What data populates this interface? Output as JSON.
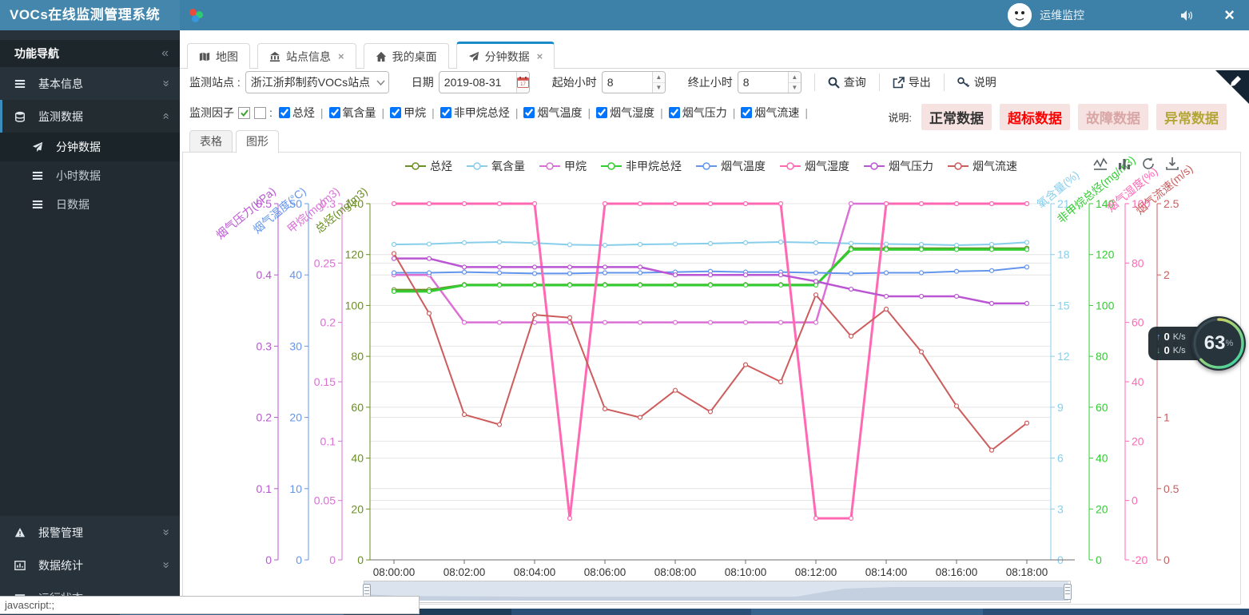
{
  "header": {
    "title": "VOCs在线监测管理系统",
    "user_name": "运维监控"
  },
  "sidebar": {
    "title": "功能导航",
    "items": [
      {
        "label": "基本信息",
        "icon": "list-icon",
        "chevron": "down"
      },
      {
        "label": "监测数据",
        "icon": "database-icon",
        "chevron": "up",
        "active": true
      }
    ],
    "submenu": [
      {
        "label": "分钟数据",
        "icon": "plane-icon",
        "active": true
      },
      {
        "label": "小时数据",
        "icon": "list-icon"
      },
      {
        "label": "日数据",
        "icon": "list-icon"
      }
    ],
    "bottom_items": [
      {
        "label": "报警管理",
        "icon": "alert-icon",
        "chevron": "down"
      },
      {
        "label": "数据统计",
        "icon": "stats-icon",
        "chevron": "down"
      },
      {
        "label": "运行状态",
        "icon": "list-icon",
        "clipped": true
      }
    ]
  },
  "tabs": [
    {
      "label": "地图",
      "icon": "map-icon",
      "closable": false
    },
    {
      "label": "站点信息",
      "icon": "bank-icon",
      "closable": true
    },
    {
      "label": "我的桌面",
      "icon": "home-icon",
      "closable": false
    },
    {
      "label": "分钟数据",
      "icon": "plane-icon",
      "closable": true,
      "active": true
    }
  ],
  "filters": {
    "station_label": "监测站点 :",
    "station_value": "浙江浙邦制药VOCs站点",
    "date_label": "日期",
    "date_value": "2019-08-31",
    "start_hour_label": "起始小时",
    "start_hour_value": "8",
    "end_hour_label": "终止小时",
    "end_hour_value": "8",
    "query_label": "查询",
    "export_label": "导出",
    "help_label": "说明"
  },
  "factors": {
    "label": "监测因子",
    "all_checked": true,
    "options": [
      "总烃",
      "氧含量",
      "甲烷",
      "非甲烷总烃",
      "烟气温度",
      "烟气湿度",
      "烟气压力",
      "烟气流速"
    ]
  },
  "status_legend": {
    "label": "说明:",
    "bg": "#f6e3e1",
    "items": [
      {
        "text": "正常数据",
        "color": "#333333"
      },
      {
        "text": "超标数据",
        "color": "#ff0000"
      },
      {
        "text": "故障数据",
        "color": "#d9a6a6"
      },
      {
        "text": "异常数据",
        "color": "#b3a637"
      }
    ]
  },
  "view_tabs": [
    {
      "label": "表格"
    },
    {
      "label": "图形",
      "active": true
    }
  ],
  "chart_data": {
    "type": "line",
    "x": [
      "08:00:00",
      "08:01:00",
      "08:02:00",
      "08:03:00",
      "08:04:00",
      "08:05:00",
      "08:06:00",
      "08:07:00",
      "08:08:00",
      "08:09:00",
      "08:10:00",
      "08:11:00",
      "08:12:00",
      "08:13:00",
      "08:14:00",
      "08:15:00",
      "08:16:00",
      "08:17:00",
      "08:18:00"
    ],
    "x_label_every": 2,
    "grid": true,
    "legend_position": "top",
    "axes": [
      {
        "id": "pressure",
        "title": "烟气压力(KPa)",
        "color": "#ba55d3",
        "min": 0,
        "max": 0.5,
        "ticks": [
          0,
          0.1,
          0.2,
          0.3,
          0.4,
          0.5
        ],
        "side": "left"
      },
      {
        "id": "temp",
        "title": "烟气温度(°C)",
        "color": "#6495ed",
        "min": 0,
        "max": 50,
        "ticks": [
          0,
          10,
          20,
          30,
          40,
          50
        ],
        "side": "left"
      },
      {
        "id": "ch4",
        "title": "甲烷(mg/m3)",
        "color": "#da70d6",
        "min": 0,
        "max": 0.3,
        "ticks": [
          0,
          0.05,
          0.1,
          0.15,
          0.2,
          0.25,
          0.3
        ],
        "side": "left"
      },
      {
        "id": "thc",
        "title": "总烃(mg/m3)",
        "color": "#6b8e23",
        "min": 0,
        "max": 140,
        "ticks": [
          0,
          20,
          40,
          60,
          80,
          100,
          120,
          140
        ],
        "side": "left"
      },
      {
        "id": "o2",
        "title": "氧含量(%)",
        "color": "#87ceeb",
        "min": 0,
        "max": 21,
        "ticks": [
          0,
          3,
          6,
          9,
          12,
          15,
          18,
          21
        ],
        "side": "right"
      },
      {
        "id": "nmhc",
        "title": "非甲烷总烃(mg/m3)",
        "color": "#32cd32",
        "min": 0,
        "max": 140,
        "ticks": [
          0,
          20,
          40,
          60,
          80,
          100,
          120,
          140
        ],
        "side": "right"
      },
      {
        "id": "humidity",
        "title": "烟气湿度(%)",
        "color": "#ff69b4",
        "min": -20,
        "max": 100,
        "ticks": [
          -20,
          0,
          20,
          40,
          60,
          80,
          100
        ],
        "side": "right"
      },
      {
        "id": "flow",
        "title": "烟气流速(m/s)",
        "color": "#cd5c5c",
        "min": 0,
        "max": 2.5,
        "ticks": [
          0,
          0.5,
          1,
          1.5,
          2,
          2.5
        ],
        "side": "right"
      }
    ],
    "series": [
      {
        "name": "总烃",
        "axis": "thc",
        "color": "#6b8e23",
        "width": 2,
        "values": [
          106.2,
          106.2,
          108.2,
          108.2,
          108.2,
          108.2,
          108.2,
          108.2,
          108.2,
          108.2,
          108.2,
          108.2,
          108.2,
          122.5,
          122.5,
          122.5,
          122.5,
          122.5,
          122.5
        ]
      },
      {
        "name": "氧含量",
        "axis": "o2",
        "color": "#87ceeb",
        "width": 2,
        "values": [
          18.6,
          18.62,
          18.7,
          18.74,
          18.68,
          18.58,
          18.55,
          18.6,
          18.62,
          18.65,
          18.7,
          18.74,
          18.7,
          18.66,
          18.62,
          18.6,
          18.55,
          18.6,
          18.72
        ]
      },
      {
        "name": "甲烷",
        "axis": "ch4",
        "color": "#da70d6",
        "width": 2.5,
        "values": [
          0.24,
          0.24,
          0.2,
          0.2,
          0.2,
          0.2,
          0.2,
          0.2,
          0.2,
          0.2,
          0.2,
          0.2,
          0.2,
          0.3,
          0.3,
          0.3,
          0.3,
          0.3,
          0.3
        ]
      },
      {
        "name": "非甲烷总烃",
        "axis": "nmhc",
        "color": "#32cd32",
        "width": 3,
        "values": [
          105.5,
          105.5,
          108,
          108,
          108,
          108,
          108,
          108,
          108,
          108,
          108,
          108,
          108,
          122,
          122,
          122,
          122,
          122,
          122
        ]
      },
      {
        "name": "烟气温度",
        "axis": "temp",
        "color": "#6495ed",
        "width": 2,
        "values": [
          40.3,
          40.3,
          40.4,
          40.3,
          40.2,
          40.2,
          40.3,
          40.3,
          40.4,
          40.5,
          40.4,
          40.4,
          40.3,
          40.2,
          40.3,
          40.3,
          40.5,
          40.6,
          41.1
        ]
      },
      {
        "name": "烟气湿度",
        "axis": "humidity",
        "color": "#ff69b4",
        "width": 3,
        "values": [
          100,
          100,
          100,
          100,
          100,
          -6,
          100,
          100,
          100,
          100,
          100,
          100,
          -6,
          -6,
          100,
          100,
          100,
          100,
          100
        ]
      },
      {
        "name": "烟气压力",
        "axis": "pressure",
        "color": "#ba55d3",
        "width": 2.5,
        "values": [
          0.423,
          0.423,
          0.411,
          0.411,
          0.411,
          0.411,
          0.411,
          0.411,
          0.4,
          0.4,
          0.4,
          0.4,
          0.391,
          0.38,
          0.37,
          0.37,
          0.37,
          0.36,
          0.36
        ]
      },
      {
        "name": "烟气流速",
        "axis": "flow",
        "color": "#cd5c5c",
        "width": 2,
        "values": [
          2.15,
          1.73,
          1.02,
          0.95,
          1.72,
          1.7,
          1.06,
          1.0,
          1.19,
          1.04,
          1.37,
          1.25,
          1.86,
          1.57,
          1.76,
          1.46,
          1.08,
          0.77,
          0.96
        ]
      }
    ]
  },
  "net_widget": {
    "up_value": "0",
    "up_unit": "K/s",
    "down_value": "0",
    "down_unit": "K/s",
    "percent": "63",
    "percent_unit": "%"
  },
  "statusbar": {
    "text": "javascript:;"
  }
}
